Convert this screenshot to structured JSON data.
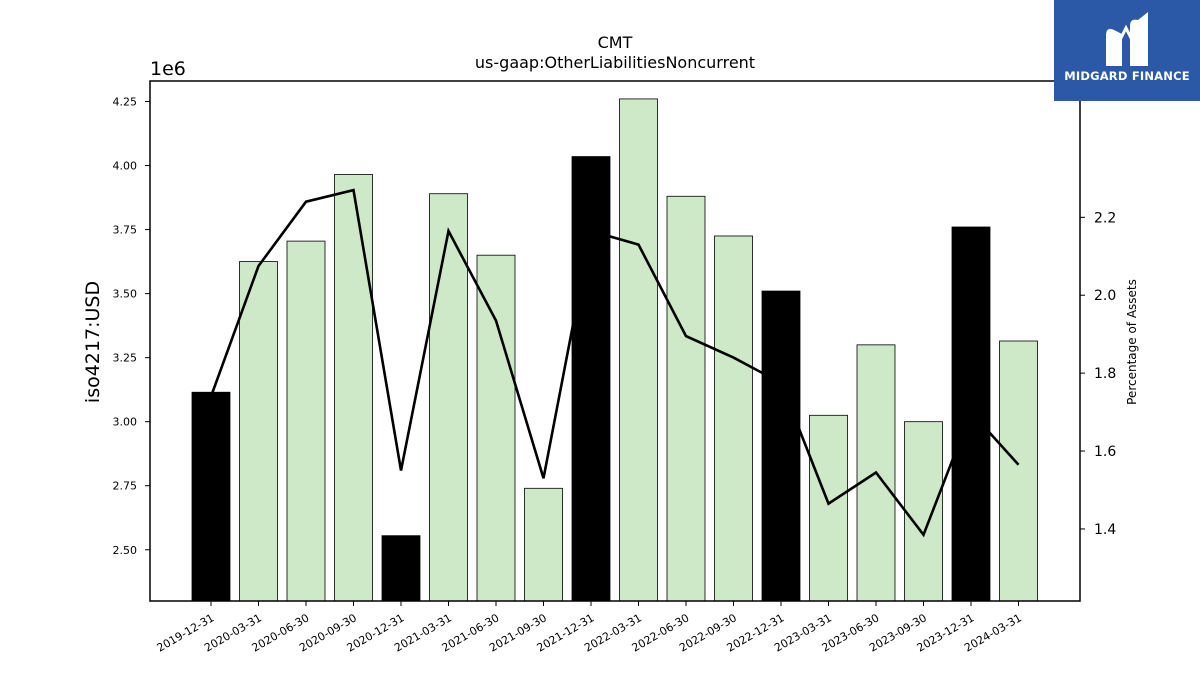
{
  "chart_data": {
    "type": "bar",
    "title": "CMT",
    "subtitle": "us-gaap:OtherLiabilitiesNoncurrent",
    "ylabel": "iso4217:USD",
    "y_multiplier_label": "1e6",
    "y2label": "Percentage of Assets",
    "ylim": [
      2.3,
      4.33
    ],
    "y2lim": [
      1.215,
      2.55
    ],
    "y_ticks": [
      "2.50",
      "2.75",
      "3.00",
      "3.25",
      "3.50",
      "3.75",
      "4.00",
      "4.25"
    ],
    "y2_ticks": [
      "1.4",
      "1.6",
      "1.8",
      "2.0",
      "2.2"
    ],
    "grid": false,
    "categories": [
      "2019-12-31",
      "2020-03-31",
      "2020-06-30",
      "2020-09-30",
      "2020-12-31",
      "2021-03-31",
      "2021-06-30",
      "2021-09-30",
      "2021-12-31",
      "2022-03-31",
      "2022-06-30",
      "2022-09-30",
      "2022-12-31",
      "2023-03-31",
      "2023-06-30",
      "2023-09-30",
      "2023-12-31",
      "2024-03-31"
    ],
    "series": [
      {
        "type": "bar",
        "axis": "left",
        "values": [
          3.115,
          3.625,
          3.705,
          3.965,
          2.555,
          3.89,
          3.65,
          2.74,
          4.035,
          4.26,
          3.88,
          3.725,
          3.51,
          3.025,
          3.3,
          3.0,
          3.76,
          3.315
        ],
        "year_end": [
          true,
          false,
          false,
          false,
          true,
          false,
          false,
          false,
          true,
          false,
          false,
          false,
          true,
          false,
          false,
          false,
          true,
          false
        ],
        "color_year_end": "#000000",
        "color_other": "#cde9c8"
      },
      {
        "type": "line",
        "axis": "right",
        "values": [
          1.74,
          2.075,
          2.24,
          2.27,
          1.55,
          2.165,
          1.935,
          1.53,
          2.165,
          2.13,
          1.895,
          1.84,
          1.775,
          1.465,
          1.545,
          1.385,
          1.7,
          1.565
        ],
        "color": "#000000"
      }
    ]
  },
  "logo": {
    "text": "MIDGARD FINANCE",
    "icon": "midgard-logo-icon",
    "color": "#2b59a7"
  }
}
